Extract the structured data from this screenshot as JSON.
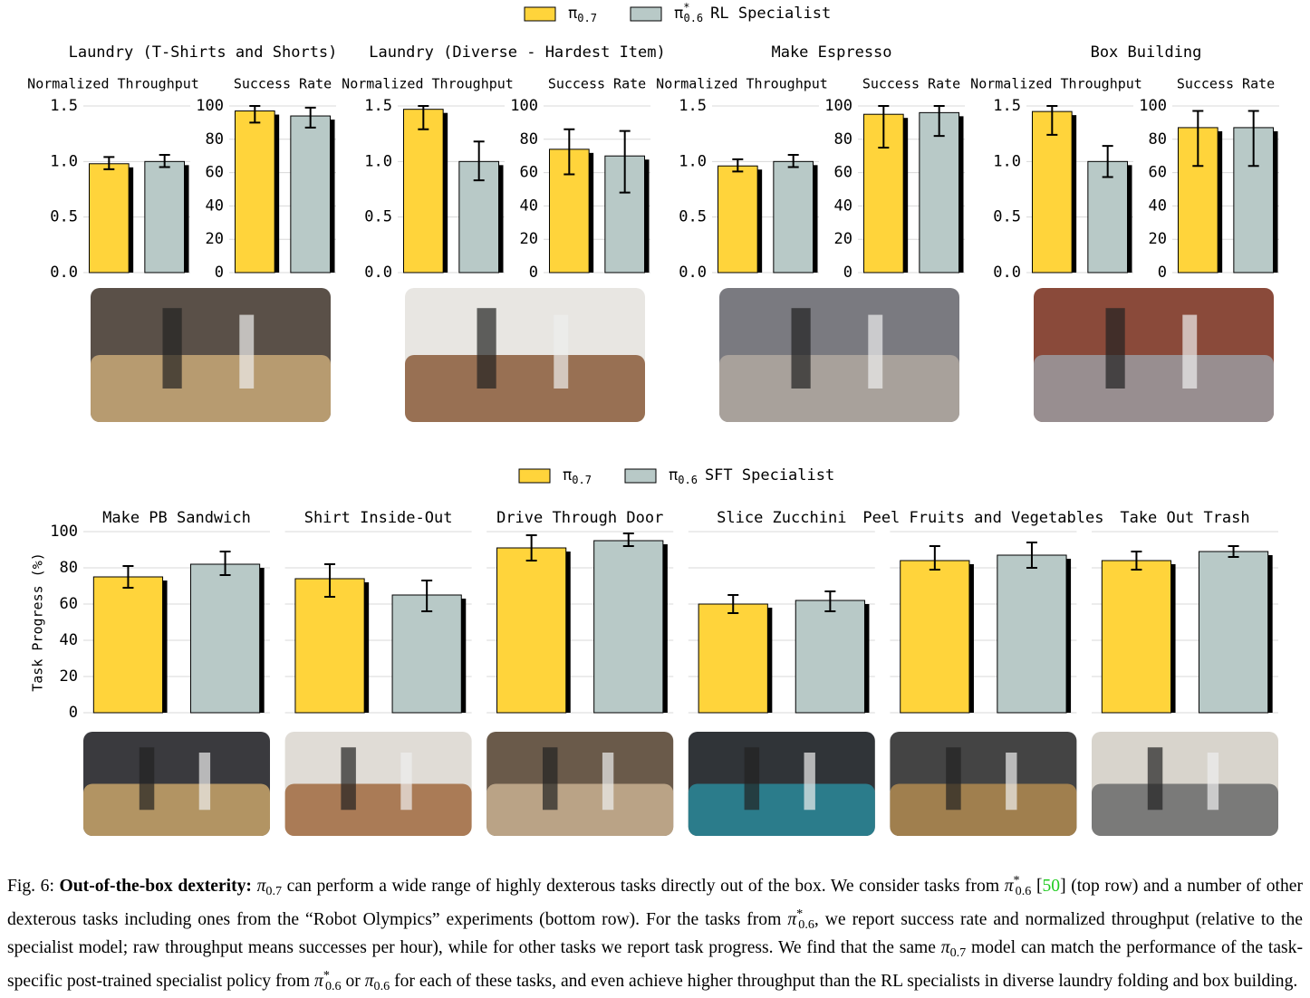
{
  "chart_data": [
    {
      "type": "bar",
      "legend": [
        {
          "symbol": "π",
          "sub": "0.7",
          "color": "#ffd43b"
        },
        {
          "symbol": "π",
          "sup": "*",
          "sub": "0.6",
          "text": "RL Specialist",
          "color": "#b8c9c7"
        }
      ],
      "grid": true,
      "panels": [
        {
          "title": "Laundry (T-Shirts and Shorts)",
          "subplots": [
            {
              "title": "Normalized Throughput",
              "ylim": [
                0,
                1.5
              ],
              "yticks": [
                {
                  "value": 0,
                  "label": "0.0"
                },
                0.5,
                {
                  "value": 1,
                  "label": "1.0"
                },
                1.5
              ],
              "values": [
                0.98,
                1.0
              ],
              "ci": [
                [
                  0.93,
                  1.04
                ],
                [
                  0.95,
                  1.06
                ]
              ]
            },
            {
              "title": "Success Rate",
              "ylim": [
                0,
                100
              ],
              "yticks": [
                0,
                20,
                40,
                60,
                80,
                100
              ],
              "values": [
                97,
                94
              ],
              "ci": [
                [
                  90,
                  100
                ],
                [
                  87,
                  99
                ]
              ]
            }
          ]
        },
        {
          "title": "Laundry (Diverse - Hardest Item)",
          "subplots": [
            {
              "title": "Normalized Throughput",
              "ylim": [
                0,
                1.5
              ],
              "yticks": [
                {
                  "value": 0,
                  "label": "0.0"
                },
                0.5,
                {
                  "value": 1,
                  "label": "1.0"
                },
                1.5
              ],
              "values": [
                1.47,
                1.0
              ],
              "ci": [
                [
                  1.29,
                  1.5
                ],
                [
                  0.83,
                  1.18
                ]
              ]
            },
            {
              "title": "Success Rate",
              "ylim": [
                0,
                100
              ],
              "yticks": [
                0,
                20,
                40,
                60,
                80,
                100
              ],
              "values": [
                74,
                70
              ],
              "ci": [
                [
                  59,
                  86
                ],
                [
                  48,
                  85
                ]
              ]
            }
          ]
        },
        {
          "title": "Make Espresso",
          "subplots": [
            {
              "title": "Normalized Throughput",
              "ylim": [
                0,
                1.5
              ],
              "yticks": [
                {
                  "value": 0,
                  "label": "0.0"
                },
                0.5,
                {
                  "value": 1,
                  "label": "1.0"
                },
                1.5
              ],
              "values": [
                0.96,
                1.0
              ],
              "ci": [
                [
                  0.91,
                  1.02
                ],
                [
                  0.95,
                  1.06
                ]
              ]
            },
            {
              "title": "Success Rate",
              "ylim": [
                0,
                100
              ],
              "yticks": [
                0,
                20,
                40,
                60,
                80,
                100
              ],
              "values": [
                95,
                96
              ],
              "ci": [
                [
                  75,
                  100
                ],
                [
                  82,
                  100
                ]
              ]
            }
          ]
        },
        {
          "title": "Box Building",
          "subplots": [
            {
              "title": "Normalized Throughput",
              "ylim": [
                0,
                1.5
              ],
              "yticks": [
                {
                  "value": 0,
                  "label": "0.0"
                },
                0.5,
                {
                  "value": 1,
                  "label": "1.0"
                },
                1.5
              ],
              "values": [
                1.45,
                1.0
              ],
              "ci": [
                [
                  1.24,
                  1.5
                ],
                [
                  0.86,
                  1.14
                ]
              ]
            },
            {
              "title": "Success Rate",
              "ylim": [
                0,
                100
              ],
              "yticks": [
                0,
                20,
                40,
                60,
                80,
                100
              ],
              "values": [
                87,
                87
              ],
              "ci": [
                [
                  64,
                  97
                ],
                [
                  64,
                  97
                ]
              ]
            }
          ]
        }
      ]
    },
    {
      "type": "bar",
      "legend": [
        {
          "symbol": "π",
          "sub": "0.7",
          "color": "#ffd43b"
        },
        {
          "symbol": "π",
          "sub": "0.6",
          "text": "SFT Specialist",
          "color": "#b8c9c7"
        }
      ],
      "grid": true,
      "ylabel": "Task Progress (%)",
      "ylim": [
        0,
        100
      ],
      "yticks": [
        0,
        20,
        40,
        60,
        80,
        100
      ],
      "panels": [
        {
          "title": "Make PB Sandwich",
          "values": [
            75,
            82
          ],
          "ci": [
            [
              69,
              81
            ],
            [
              76,
              89
            ]
          ]
        },
        {
          "title": "Shirt Inside-Out",
          "values": [
            74,
            65
          ],
          "ci": [
            [
              64,
              82
            ],
            [
              56,
              73
            ]
          ]
        },
        {
          "title": "Drive Through Door",
          "values": [
            91,
            95
          ],
          "ci": [
            [
              84,
              98
            ],
            [
              92,
              99
            ]
          ]
        },
        {
          "title": "Slice Zucchini",
          "values": [
            60,
            62
          ],
          "ci": [
            [
              55,
              65
            ],
            [
              56,
              67
            ]
          ]
        },
        {
          "title": "Peel Fruits and Vegetables",
          "values": [
            84,
            87
          ],
          "ci": [
            [
              79,
              92
            ],
            [
              80,
              94
            ]
          ]
        },
        {
          "title": "Take Out Trash",
          "values": [
            84,
            89
          ],
          "ci": [
            [
              79,
              89
            ],
            [
              86,
              92
            ]
          ]
        }
      ]
    }
  ],
  "caption": [
    {
      "text": "Fig. 6: ",
      "style": "normal"
    },
    {
      "text": "Out-of-the-box dexterity: ",
      "style": "bold"
    },
    {
      "text": "π",
      "style": "math"
    },
    {
      "text": "0.7",
      "style": "sub"
    },
    {
      "text": " can perform a wide range of highly dexterous tasks directly out of the box. We consider tasks from ",
      "style": "normal"
    },
    {
      "text": "π",
      "style": "math"
    },
    {
      "text": "*",
      "style": "sup"
    },
    {
      "text": "0.6",
      "style": "sub"
    },
    {
      "text": " [",
      "style": "normal"
    },
    {
      "text": "50",
      "style": "link"
    },
    {
      "text": "] (top row) and a number of other dexterous tasks including ones from the “Robot Olympics” experiments (bottom row). For the tasks from ",
      "style": "normal"
    },
    {
      "text": "π",
      "style": "math"
    },
    {
      "text": "*",
      "style": "sup"
    },
    {
      "text": "0.6",
      "style": "sub"
    },
    {
      "text": ", we report success rate and normalized throughput (relative to the specialist model; raw throughput means successes per hour), while for other tasks we report task progress. We find that the same ",
      "style": "normal"
    },
    {
      "text": "π",
      "style": "math"
    },
    {
      "text": "0.7",
      "style": "sub"
    },
    {
      "text": " model can match the performance of the task-specific post-trained specialist policy from ",
      "style": "normal"
    },
    {
      "text": "π",
      "style": "math"
    },
    {
      "text": "*",
      "style": "sup"
    },
    {
      "text": "0.6",
      "style": "sub"
    },
    {
      "text": " or ",
      "style": "normal"
    },
    {
      "text": "π",
      "style": "math"
    },
    {
      "text": "0.6",
      "style": "sub"
    },
    {
      "text": " for each of these tasks, and even achieve higher throughput than the RL specialists in diverse laundry folding and box building.",
      "style": "normal"
    }
  ]
}
